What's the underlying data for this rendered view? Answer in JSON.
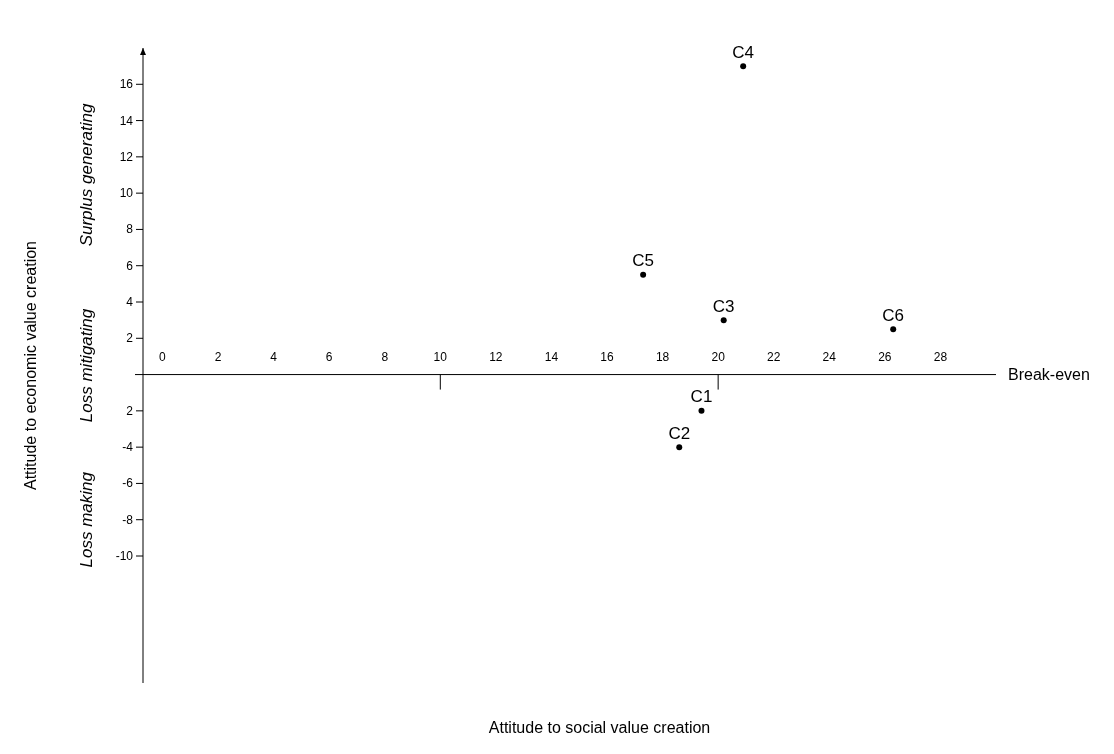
{
  "chart_data": {
    "type": "scatter",
    "xlabel": "Attitude to social value creation",
    "ylabel": "Attitude to economic value creation",
    "xlim": [
      -0.7,
      30
    ],
    "ylim": [
      -17,
      18
    ],
    "xticks": [
      0,
      2,
      4,
      6,
      8,
      10,
      12,
      14,
      16,
      18,
      20,
      22,
      24,
      26,
      28
    ],
    "yticks": [
      2,
      4,
      6,
      8,
      10,
      12,
      14,
      16,
      {
        "value": -2,
        "label": "2"
      },
      -4,
      -6,
      -8,
      -10
    ],
    "marker": "circle",
    "grid": false,
    "annotations": [
      "Break-even",
      "Surplus generating",
      "Loss mitigating",
      "Loss making",
      {
        "text": "C1",
        "x": 19.4,
        "y": -2
      },
      {
        "text": "C2",
        "x": 18.6,
        "y": -4
      },
      {
        "text": "C3",
        "x": 20.2,
        "y": 3
      },
      {
        "text": "C4",
        "x": 20.9,
        "y": 17
      },
      {
        "text": "C5",
        "x": 17.3,
        "y": 5.5
      },
      {
        "text": "C6",
        "x": 26.3,
        "y": 2.5
      }
    ],
    "series": [
      {
        "color": "#000000",
        "x": [
          19.4,
          18.6,
          20.2,
          20.9,
          17.3,
          26.3
        ],
        "values": [
          -2,
          -4,
          3,
          17,
          5.5,
          2.5
        ]
      }
    ]
  }
}
